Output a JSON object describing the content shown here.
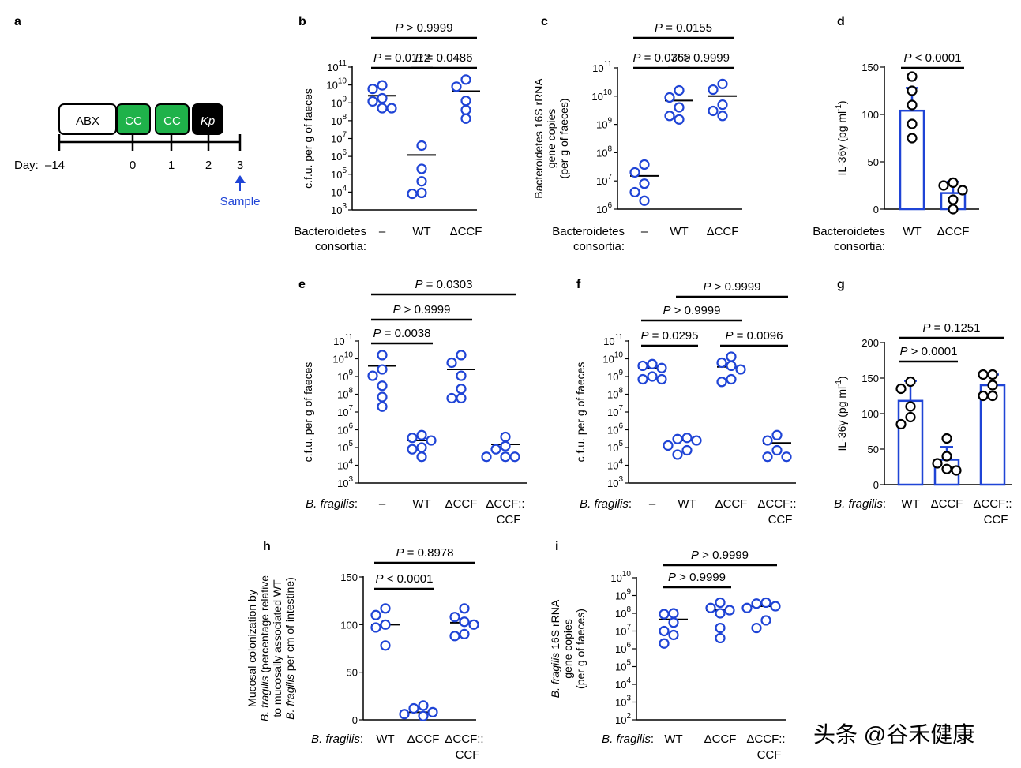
{
  "colors": {
    "blue": "#1f44d6",
    "green": "#1fb24a",
    "black": "#000000"
  },
  "watermark": "头条 @谷禾健康",
  "panel_a": {
    "letter": "a",
    "boxes": [
      {
        "label": "ABX",
        "italic": false,
        "fill": "#ffffff",
        "text_color": "#000000"
      },
      {
        "label": "CC",
        "italic": false,
        "fill": "#1fb24a",
        "text_color": "#ffffff"
      },
      {
        "label": "CC",
        "italic": false,
        "fill": "#1fb24a",
        "text_color": "#ffffff"
      },
      {
        "label": "Kp",
        "italic": true,
        "fill": "#000000",
        "text_color": "#ffffff"
      }
    ],
    "day_prefix": "Day:",
    "days": [
      "–14",
      "0",
      "1",
      "2",
      "3"
    ],
    "sample_label": "Sample"
  },
  "chart_data": [
    {
      "letter": "b",
      "type": "scatter",
      "log": true,
      "ylabel": [
        "c.f.u. per g of faeces"
      ],
      "ylim": [
        1000.0,
        100000000000.0
      ],
      "yticks": [
        "10^3",
        "10^4",
        "10^5",
        "10^6",
        "10^7",
        "10^8",
        "10^9",
        "10^10",
        "10^11"
      ],
      "group_label": [
        "Bacteroidetes",
        "consortia:"
      ],
      "group_italic": false,
      "categories": [
        [
          "–"
        ],
        [
          "WT"
        ],
        [
          "ΔCCF"
        ]
      ],
      "color": "blue",
      "groups": [
        {
          "mean": 2500000000.0,
          "points": [
            9500000000.0,
            6000000000.0,
            1800000000.0,
            1200000000.0,
            500000000.0,
            500000000.0
          ]
        },
        {
          "mean": 1200000.0,
          "points": [
            4000000.0,
            200000.0,
            40000.0,
            9000.0,
            8000.0
          ]
        },
        {
          "mean": 4500000000.0,
          "points": [
            20000000000.0,
            8000000000.0,
            1300000000.0,
            400000000.0,
            130000000.0
          ]
        }
      ],
      "comparisons": [
        {
          "from": 0,
          "to": 1,
          "label": "P = 0.0112"
        },
        {
          "from": 1,
          "to": 2,
          "label": "P = 0.0486"
        },
        {
          "from": 0,
          "to": 2,
          "label": "P > 0.9999"
        }
      ]
    },
    {
      "letter": "c",
      "type": "scatter",
      "log": true,
      "ylabel": [
        "Bacteroidetes 16S rRNA",
        "gene copies",
        "(per g of faeces)"
      ],
      "ylim": [
        1000000.0,
        100000000000.0
      ],
      "yticks": [
        "10^6",
        "10^7",
        "10^8",
        "10^9",
        "10^10",
        "10^11"
      ],
      "group_label": [
        "Bacteroidetes",
        "consortia:"
      ],
      "group_italic": false,
      "categories": [
        [
          "–"
        ],
        [
          "WT"
        ],
        [
          "ΔCCF"
        ]
      ],
      "color": "blue",
      "groups": [
        {
          "mean": 15000000.0,
          "points": [
            38000000.0,
            20000000.0,
            8000000.0,
            4000000.0,
            2000000.0
          ]
        },
        {
          "mean": 7000000000.0,
          "points": [
            16000000000.0,
            9000000000.0,
            4000000000.0,
            2000000000.0,
            1500000000.0
          ]
        },
        {
          "mean": 10000000000.0,
          "points": [
            27000000000.0,
            17000000000.0,
            5000000000.0,
            3000000000.0,
            2000000000.0
          ]
        }
      ],
      "comparisons": [
        {
          "from": 0,
          "to": 1,
          "label": "P = 0.0360"
        },
        {
          "from": 1,
          "to": 2,
          "label": "P > 0.9999"
        },
        {
          "from": 0,
          "to": 2,
          "label": "P = 0.0155"
        }
      ]
    },
    {
      "letter": "d",
      "type": "bar",
      "log": false,
      "ylabel": [
        "IL-36γ (pg ml^-1)"
      ],
      "ylim": [
        0,
        150
      ],
      "yticks": [
        "0",
        "50",
        "100",
        "150"
      ],
      "group_label": [
        "Bacteroidetes",
        "consortia:"
      ],
      "group_italic": false,
      "categories": [
        [
          "WT"
        ],
        [
          "ΔCCF"
        ]
      ],
      "color": "black",
      "groups": [
        {
          "mean": 104,
          "sd": 24,
          "points": [
            140,
            125,
            110,
            90,
            75
          ]
        },
        {
          "mean": 17,
          "sd": 12,
          "points": [
            28,
            25,
            20,
            10,
            0
          ]
        }
      ],
      "comparisons": [
        {
          "from": 0,
          "to": 1,
          "label": "P < 0.0001"
        }
      ]
    },
    {
      "letter": "e",
      "type": "scatter",
      "log": true,
      "ylabel": [
        "c.f.u. per g of faeces"
      ],
      "ylim": [
        1000.0,
        100000000000.0
      ],
      "yticks": [
        "10^3",
        "10^4",
        "10^5",
        "10^6",
        "10^7",
        "10^8",
        "10^9",
        "10^10",
        "10^11"
      ],
      "group_label": [
        "B. fragilis:"
      ],
      "group_italic": true,
      "categories": [
        [
          "–"
        ],
        [
          "WT"
        ],
        [
          "ΔCCF"
        ],
        [
          "ΔCCF::",
          "CCF"
        ]
      ],
      "color": "blue",
      "groups": [
        {
          "mean": 4000000000.0,
          "points": [
            16000000000.0,
            2500000000.0,
            1100000000.0,
            300000000.0,
            70000000.0,
            20000000.0
          ]
        },
        {
          "mean": 250000.0,
          "points": [
            500000.0,
            350000.0,
            250000.0,
            100000.0,
            80000.0,
            30000.0
          ]
        },
        {
          "mean": 2500000000.0,
          "points": [
            16000000000.0,
            6000000000.0,
            1100000000.0,
            200000000.0,
            60000000.0,
            60000000.0
          ]
        },
        {
          "mean": 150000.0,
          "points": [
            400000.0,
            120000.0,
            80000.0,
            30000.0,
            30000.0,
            30000.0
          ]
        }
      ],
      "comparisons": [
        {
          "from": 0,
          "to": 1,
          "label": "P = 0.0038"
        },
        {
          "from": 0,
          "to": 2,
          "label": "P > 0.9999"
        },
        {
          "from": 0,
          "to": 3,
          "label": "P = 0.0303"
        }
      ]
    },
    {
      "letter": "f",
      "type": "scatter",
      "log": true,
      "ylabel": [
        "c.f.u. per g of faeces"
      ],
      "ylim": [
        1000.0,
        100000000000.0
      ],
      "yticks": [
        "10^3",
        "10^4",
        "10^5",
        "10^6",
        "10^7",
        "10^8",
        "10^9",
        "10^10",
        "10^11"
      ],
      "group_label": [
        "B. fragilis:"
      ],
      "group_italic": true,
      "categories": [
        [
          "–"
        ],
        [
          "WT"
        ],
        [
          "ΔCCF"
        ],
        [
          "ΔCCF::",
          "CCF"
        ]
      ],
      "color": "blue",
      "groups": [
        {
          "mean": 3000000000.0,
          "points": [
            5000000000.0,
            4000000000.0,
            3000000000.0,
            1000000000.0,
            700000000.0,
            700000000.0
          ]
        },
        {
          "mean": 250000.0,
          "points": [
            350000.0,
            300000.0,
            250000.0,
            130000.0,
            70000.0,
            40000.0
          ]
        },
        {
          "mean": 3500000000.0,
          "points": [
            13000000000.0,
            6000000000.0,
            4000000000.0,
            2500000000.0,
            700000000.0,
            500000000.0
          ]
        },
        {
          "mean": 180000.0,
          "points": [
            500000.0,
            250000.0,
            70000.0,
            30000.0,
            30000.0
          ]
        }
      ],
      "comparisons": [
        {
          "from": 0,
          "to": 1,
          "label": "P = 0.0295"
        },
        {
          "from": 2,
          "to": 3,
          "label": "P = 0.0096"
        },
        {
          "from": 0,
          "to": 2,
          "label": "P > 0.9999"
        },
        {
          "from": 1,
          "to": 3,
          "label": "P > 0.9999"
        }
      ]
    },
    {
      "letter": "g",
      "type": "bar",
      "log": false,
      "ylabel": [
        "IL-36γ (pg ml^-1)"
      ],
      "ylim": [
        0,
        200
      ],
      "yticks": [
        "0",
        "50",
        "100",
        "150",
        "200"
      ],
      "group_label": [
        "B. fragilis:"
      ],
      "group_italic": true,
      "categories": [
        [
          "WT"
        ],
        [
          "ΔCCF"
        ],
        [
          "ΔCCF::",
          "CCF"
        ]
      ],
      "color": "black",
      "groups": [
        {
          "mean": 118,
          "sd": 28,
          "points": [
            145,
            135,
            110,
            95,
            85
          ]
        },
        {
          "mean": 35,
          "sd": 18,
          "points": [
            65,
            40,
            30,
            22,
            20
          ]
        },
        {
          "mean": 140,
          "sd": 15,
          "points": [
            155,
            155,
            140,
            125,
            125
          ]
        }
      ],
      "comparisons": [
        {
          "from": 0,
          "to": 1,
          "label": "P > 0.0001"
        },
        {
          "from": 0,
          "to": 2,
          "label": "P = 0.1251"
        }
      ]
    },
    {
      "letter": "h",
      "type": "scatter",
      "log": false,
      "ylabel": [
        "Mucosal colonization by",
        "B. fragilis (percentage relative",
        "to mucosally associated WT",
        "B. fragilis per cm of intestine)"
      ],
      "ylim": [
        0,
        150
      ],
      "yticks": [
        "0",
        "50",
        "100",
        "150"
      ],
      "group_label": [
        "B. fragilis:"
      ],
      "group_italic": true,
      "categories": [
        [
          "WT"
        ],
        [
          "ΔCCF"
        ],
        [
          "ΔCCF::",
          "CCF"
        ]
      ],
      "color": "blue",
      "groups": [
        {
          "mean": 100,
          "points": [
            117,
            110,
            100,
            97,
            78
          ]
        },
        {
          "mean": 8,
          "points": [
            15,
            12,
            8,
            6,
            4
          ]
        },
        {
          "mean": 102,
          "points": [
            117,
            108,
            103,
            100,
            90,
            88
          ]
        }
      ],
      "comparisons": [
        {
          "from": 0,
          "to": 1,
          "label": "P < 0.0001"
        },
        {
          "from": 0,
          "to": 2,
          "label": "P = 0.8978"
        }
      ]
    },
    {
      "letter": "i",
      "type": "scatter",
      "log": true,
      "ylabel": [
        "B. fragilis 16S rRNA",
        "gene copies",
        "(per g of faeces)"
      ],
      "ylim": [
        100.0,
        10000000000.0
      ],
      "yticks": [
        "10^2",
        "10^3",
        "10^4",
        "10^5",
        "10^6",
        "10^7",
        "10^8",
        "10^9",
        "10^10"
      ],
      "group_label": [
        "B. fragilis:"
      ],
      "group_italic": true,
      "categories": [
        [
          "WT"
        ],
        [
          "ΔCCF"
        ],
        [
          "ΔCCF::",
          "CCF"
        ]
      ],
      "color": "blue",
      "groups": [
        {
          "mean": 45000000.0,
          "points": [
            100000000.0,
            90000000.0,
            30000000.0,
            10000000.0,
            6000000.0,
            2000000.0
          ]
        },
        {
          "mean": 150000000.0,
          "points": [
            400000000.0,
            200000000.0,
            150000000.0,
            100000000.0,
            15000000.0,
            4000000.0
          ]
        },
        {
          "mean": 250000000.0,
          "points": [
            400000000.0,
            350000000.0,
            250000000.0,
            200000000.0,
            40000000.0,
            15000000.0
          ]
        }
      ],
      "comparisons": [
        {
          "from": 0,
          "to": 1,
          "label": "P > 0.9999"
        },
        {
          "from": 0,
          "to": 2,
          "label": "P > 0.9999"
        }
      ]
    }
  ]
}
